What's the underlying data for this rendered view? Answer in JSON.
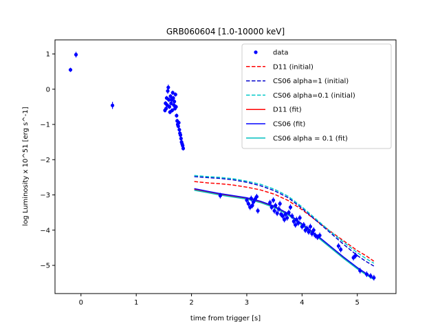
{
  "chart_data": {
    "type": "scatter",
    "title": "GRB060604 [1.0-10000 keV]",
    "xlabel": "time from trigger [s]",
    "ylabel": "log Luminosity x 10^51 [erg s^-1]",
    "xlim": [
      -0.47,
      5.7
    ],
    "ylim": [
      -5.8,
      1.4
    ],
    "xticks": [
      0,
      1,
      2,
      3,
      4,
      5
    ],
    "yticks": [
      -5,
      -4,
      -3,
      -2,
      -1,
      0,
      1
    ],
    "grid": false,
    "legend_position": "top-right",
    "data_series": {
      "name": "data",
      "color": "#0000ff",
      "points": [
        [
          -0.19,
          0.55,
          0.06
        ],
        [
          -0.09,
          0.98,
          0.08
        ],
        [
          0.57,
          -0.46,
          0.1
        ],
        [
          1.52,
          -0.6,
          0.06
        ],
        [
          1.53,
          -0.4,
          0.06
        ],
        [
          1.54,
          -0.55,
          0.06
        ],
        [
          1.55,
          -0.25,
          0.06
        ],
        [
          1.56,
          -0.45,
          0.06
        ],
        [
          1.57,
          -0.05,
          0.08
        ],
        [
          1.58,
          0.05,
          0.08
        ],
        [
          1.59,
          -0.3,
          0.06
        ],
        [
          1.6,
          -0.5,
          0.06
        ],
        [
          1.61,
          -0.65,
          0.06
        ],
        [
          1.62,
          -0.2,
          0.06
        ],
        [
          1.63,
          -0.4,
          0.06
        ],
        [
          1.64,
          -0.3,
          0.06
        ],
        [
          1.65,
          -0.6,
          0.06
        ],
        [
          1.66,
          -0.1,
          0.06
        ],
        [
          1.67,
          -0.25,
          0.06
        ],
        [
          1.68,
          -0.45,
          0.06
        ],
        [
          1.69,
          -0.35,
          0.06
        ],
        [
          1.7,
          -0.55,
          0.06
        ],
        [
          1.71,
          -0.15,
          0.06
        ],
        [
          1.72,
          -0.5,
          0.06
        ],
        [
          1.73,
          -0.75,
          0.06
        ],
        [
          1.74,
          -0.9,
          0.06
        ],
        [
          1.75,
          -1.0,
          0.06
        ],
        [
          1.76,
          -1.05,
          0.06
        ],
        [
          1.77,
          -0.95,
          0.06
        ],
        [
          1.78,
          -1.15,
          0.06
        ],
        [
          1.79,
          -1.25,
          0.06
        ],
        [
          1.8,
          -1.3,
          0.06
        ],
        [
          1.81,
          -1.4,
          0.06
        ],
        [
          1.82,
          -1.5,
          0.06
        ],
        [
          1.83,
          -1.55,
          0.06
        ],
        [
          1.84,
          -1.6,
          0.06
        ],
        [
          1.85,
          -1.68,
          0.06
        ],
        [
          2.52,
          -3.02,
          0.08
        ],
        [
          3.0,
          -3.15,
          0.08
        ],
        [
          3.03,
          -3.25,
          0.08
        ],
        [
          3.06,
          -3.35,
          0.08
        ],
        [
          3.08,
          -3.1,
          0.08
        ],
        [
          3.1,
          -3.3,
          0.08
        ],
        [
          3.12,
          -3.2,
          0.08
        ],
        [
          3.15,
          -3.12,
          0.08
        ],
        [
          3.18,
          -3.05,
          0.08
        ],
        [
          3.2,
          -3.45,
          0.08
        ],
        [
          3.42,
          -3.22,
          0.08
        ],
        [
          3.45,
          -3.35,
          0.08
        ],
        [
          3.48,
          -3.15,
          0.08
        ],
        [
          3.5,
          -3.45,
          0.08
        ],
        [
          3.52,
          -3.3,
          0.08
        ],
        [
          3.55,
          -3.52,
          0.08
        ],
        [
          3.58,
          -3.4,
          0.08
        ],
        [
          3.6,
          -3.25,
          0.08
        ],
        [
          3.62,
          -3.55,
          0.08
        ],
        [
          3.65,
          -3.6,
          0.08
        ],
        [
          3.68,
          -3.7,
          0.08
        ],
        [
          3.7,
          -3.55,
          0.08
        ],
        [
          3.73,
          -3.65,
          0.08
        ],
        [
          3.76,
          -3.5,
          0.08
        ],
        [
          3.79,
          -3.35,
          0.08
        ],
        [
          3.82,
          -3.6,
          0.08
        ],
        [
          3.85,
          -3.75,
          0.08
        ],
        [
          3.88,
          -3.85,
          0.08
        ],
        [
          3.9,
          -3.7,
          0.08
        ],
        [
          3.93,
          -3.8,
          0.08
        ],
        [
          3.96,
          -3.65,
          0.08
        ],
        [
          4.0,
          -3.9,
          0.08
        ],
        [
          4.03,
          -3.85,
          0.08
        ],
        [
          4.06,
          -4.0,
          0.08
        ],
        [
          4.09,
          -3.95,
          0.08
        ],
        [
          4.12,
          -4.05,
          0.08
        ],
        [
          4.15,
          -3.9,
          0.08
        ],
        [
          4.18,
          -4.1,
          0.08
        ],
        [
          4.21,
          -4.0,
          0.08
        ],
        [
          4.24,
          -4.15,
          0.08
        ],
        [
          4.28,
          -4.2,
          0.08
        ],
        [
          4.32,
          -4.15,
          0.08
        ],
        [
          4.66,
          -4.45,
          0.08
        ],
        [
          4.7,
          -4.55,
          0.08
        ],
        [
          4.93,
          -4.78,
          0.08
        ],
        [
          4.97,
          -4.72,
          0.08
        ],
        [
          5.05,
          -5.15,
          0.08
        ],
        [
          5.17,
          -5.25,
          0.08
        ],
        [
          5.24,
          -5.3,
          0.08
        ],
        [
          5.3,
          -5.35,
          0.08
        ]
      ]
    },
    "curves_x": [
      2.05,
      2.3,
      2.5,
      2.75,
      3.0,
      3.25,
      3.5,
      3.75,
      4.0,
      4.25,
      4.5,
      4.75,
      5.0,
      5.15,
      5.3
    ],
    "curves": [
      {
        "name": "D11 (initial)",
        "color": "#ff0000",
        "dash": true,
        "y": [
          -2.62,
          -2.66,
          -2.68,
          -2.72,
          -2.78,
          -2.86,
          -2.98,
          -3.16,
          -3.42,
          -3.72,
          -4.02,
          -4.3,
          -4.58,
          -4.72,
          -4.88
        ]
      },
      {
        "name": "CS06 alpha=1 (initial)",
        "color": "#0000cc",
        "dash": true,
        "y": [
          -2.48,
          -2.51,
          -2.53,
          -2.57,
          -2.64,
          -2.74,
          -2.88,
          -3.08,
          -3.38,
          -3.72,
          -4.06,
          -4.4,
          -4.72,
          -4.88,
          -5.02
        ]
      },
      {
        "name": "CS06 alpha=0.1 (initial)",
        "color": "#00c8c8",
        "dash": true,
        "y": [
          -2.45,
          -2.48,
          -2.5,
          -2.54,
          -2.61,
          -2.7,
          -2.84,
          -3.04,
          -3.34,
          -3.68,
          -4.02,
          -4.34,
          -4.64,
          -4.8,
          -4.94
        ]
      },
      {
        "name": "D11 (fit)",
        "color": "#ff0000",
        "dash": false,
        "y": [
          -2.84,
          -2.92,
          -2.98,
          -3.04,
          -3.1,
          -3.2,
          -3.34,
          -3.55,
          -3.84,
          -4.14,
          -4.46,
          -4.78,
          -5.08,
          -5.24,
          -5.38
        ]
      },
      {
        "name": "CS06 (fit)",
        "color": "#0000ff",
        "dash": false,
        "y": [
          -2.82,
          -2.9,
          -2.96,
          -3.02,
          -3.08,
          -3.18,
          -3.32,
          -3.53,
          -3.82,
          -4.12,
          -4.44,
          -4.76,
          -5.06,
          -5.22,
          -5.36
        ]
      },
      {
        "name": "CS06 alpha = 0.1 (fit)",
        "color": "#00bfbf",
        "dash": false,
        "y": [
          -2.87,
          -2.94,
          -3.0,
          -3.06,
          -3.12,
          -3.22,
          -3.36,
          -3.57,
          -3.86,
          -4.16,
          -4.48,
          -4.8,
          -5.1,
          -5.26,
          -5.4
        ]
      }
    ],
    "legend": [
      {
        "label": "data",
        "color": "#0000ff",
        "kind": "marker"
      },
      {
        "label": "D11 (initial)",
        "color": "#ff0000",
        "kind": "dash"
      },
      {
        "label": "CS06 alpha=1 (initial)",
        "color": "#0000cc",
        "kind": "dash"
      },
      {
        "label": "CS06 alpha=0.1 (initial)",
        "color": "#00c8c8",
        "kind": "dash"
      },
      {
        "label": "D11 (fit)",
        "color": "#ff0000",
        "kind": "line"
      },
      {
        "label": "CS06 (fit)",
        "color": "#0000ff",
        "kind": "line"
      },
      {
        "label": "CS06 alpha = 0.1 (fit)",
        "color": "#00bfbf",
        "kind": "line"
      }
    ]
  }
}
